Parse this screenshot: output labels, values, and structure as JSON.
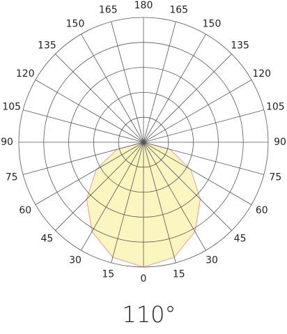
{
  "chart_data": {
    "type": "polar",
    "title": "110°",
    "rlim": [
      0,
      1
    ],
    "rings": 5,
    "angle_ticks": [
      0,
      15,
      30,
      45,
      60,
      75,
      90,
      105,
      120,
      135,
      150,
      165,
      180,
      {
        "value": 195,
        "label": "165"
      },
      {
        "value": 210,
        "label": "150"
      },
      {
        "value": 225,
        "label": "135"
      },
      {
        "value": 240,
        "label": "120"
      },
      {
        "value": 255,
        "label": "105"
      },
      {
        "value": 270,
        "label": "90"
      },
      {
        "value": 285,
        "label": "75"
      },
      {
        "value": 300,
        "label": "60"
      },
      {
        "value": 315,
        "label": "45"
      },
      {
        "value": 330,
        "label": "30"
      },
      {
        "value": 345,
        "label": "15"
      }
    ],
    "series": [
      {
        "color": "#fbf6c0",
        "stroke": "#e89a9a",
        "theta": [
          -90,
          -75,
          -60,
          -45,
          -30,
          -15,
          0,
          15,
          30,
          45,
          60,
          75,
          90
        ],
        "values": [
          0,
          0.22,
          0.437,
          0.645,
          0.826,
          0.954,
          1,
          0.954,
          0.826,
          0.645,
          0.437,
          0.22,
          0
        ]
      }
    ]
  }
}
